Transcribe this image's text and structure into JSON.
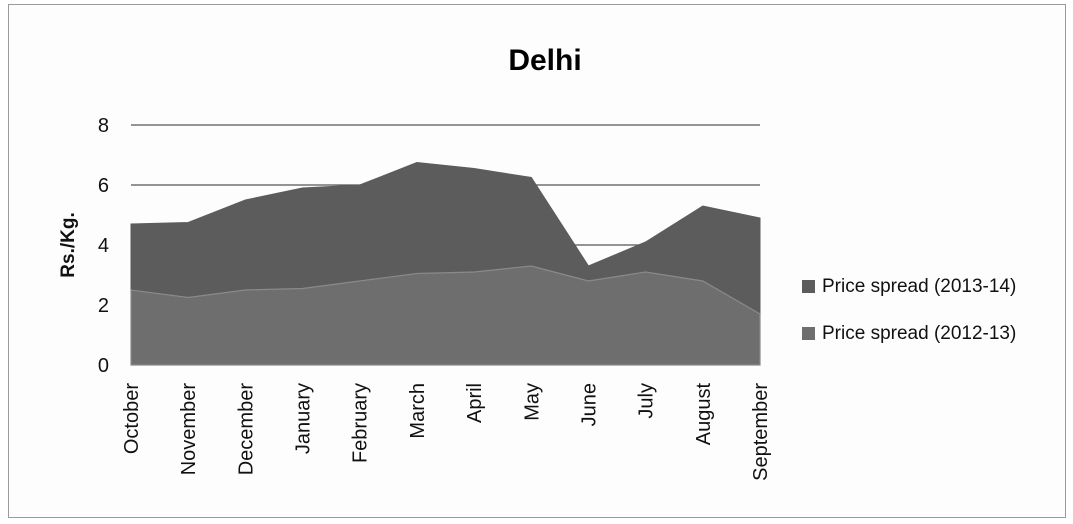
{
  "chart_data": {
    "type": "area",
    "title": "Delhi",
    "xlabel": "",
    "ylabel": "Rs./Kg.",
    "ylim": [
      0,
      8
    ],
    "yticks": [
      0,
      2,
      4,
      6,
      8
    ],
    "grid": true,
    "legend_position": "right",
    "categories": [
      "October",
      "November",
      "December",
      "January",
      "February",
      "March",
      "April",
      "May",
      "June",
      "July",
      "August",
      "September"
    ],
    "series": [
      {
        "name": "Price spread (2013-14)",
        "color": "#5c5c5c",
        "values": [
          4.7,
          4.75,
          5.5,
          5.9,
          6.0,
          6.75,
          6.55,
          6.25,
          3.3,
          4.1,
          5.3,
          4.9
        ]
      },
      {
        "name": "Price spread (2012-13)",
        "color": "#6e6e6e",
        "values": [
          2.5,
          2.25,
          2.5,
          2.55,
          2.8,
          3.05,
          3.1,
          3.3,
          2.8,
          3.1,
          2.8,
          1.7
        ]
      }
    ]
  }
}
